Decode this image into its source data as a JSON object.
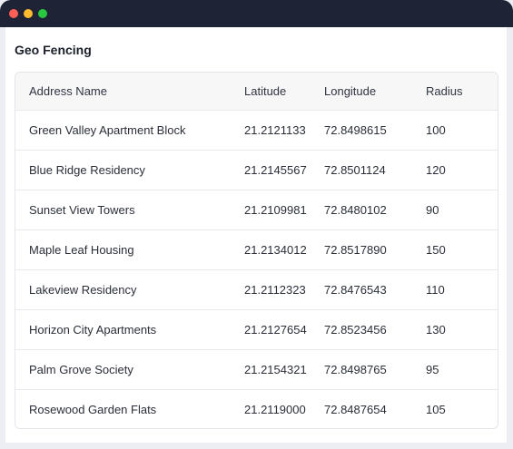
{
  "window": {
    "controls": [
      {
        "name": "close-dot",
        "color": "#ff5f57"
      },
      {
        "name": "minimize-dot",
        "color": "#febc2e"
      },
      {
        "name": "maximize-dot",
        "color": "#28c840"
      }
    ]
  },
  "page": {
    "title": "Geo Fencing"
  },
  "table": {
    "columns": [
      "Address Name",
      "Latitude",
      "Longitude",
      "Radius"
    ],
    "rows": [
      [
        "Green Valley Apartment Block",
        "21.2121133",
        "72.8498615",
        "100"
      ],
      [
        "Blue Ridge Residency",
        "21.2145567",
        "72.8501124",
        "120"
      ],
      [
        "Sunset View Towers",
        "21.2109981",
        "72.8480102",
        "90"
      ],
      [
        "Maple Leaf Housing",
        "21.2134012",
        "72.8517890",
        "150"
      ],
      [
        "Lakeview Residency",
        "21.2112323",
        "72.8476543",
        "110"
      ],
      [
        "Horizon City Apartments",
        "21.2127654",
        "72.8523456",
        "130"
      ],
      [
        "Palm Grove Society",
        "21.2154321",
        "72.8498765",
        "95"
      ],
      [
        "Rosewood Garden Flats",
        "21.2119000",
        "72.8487654",
        "105"
      ]
    ]
  }
}
